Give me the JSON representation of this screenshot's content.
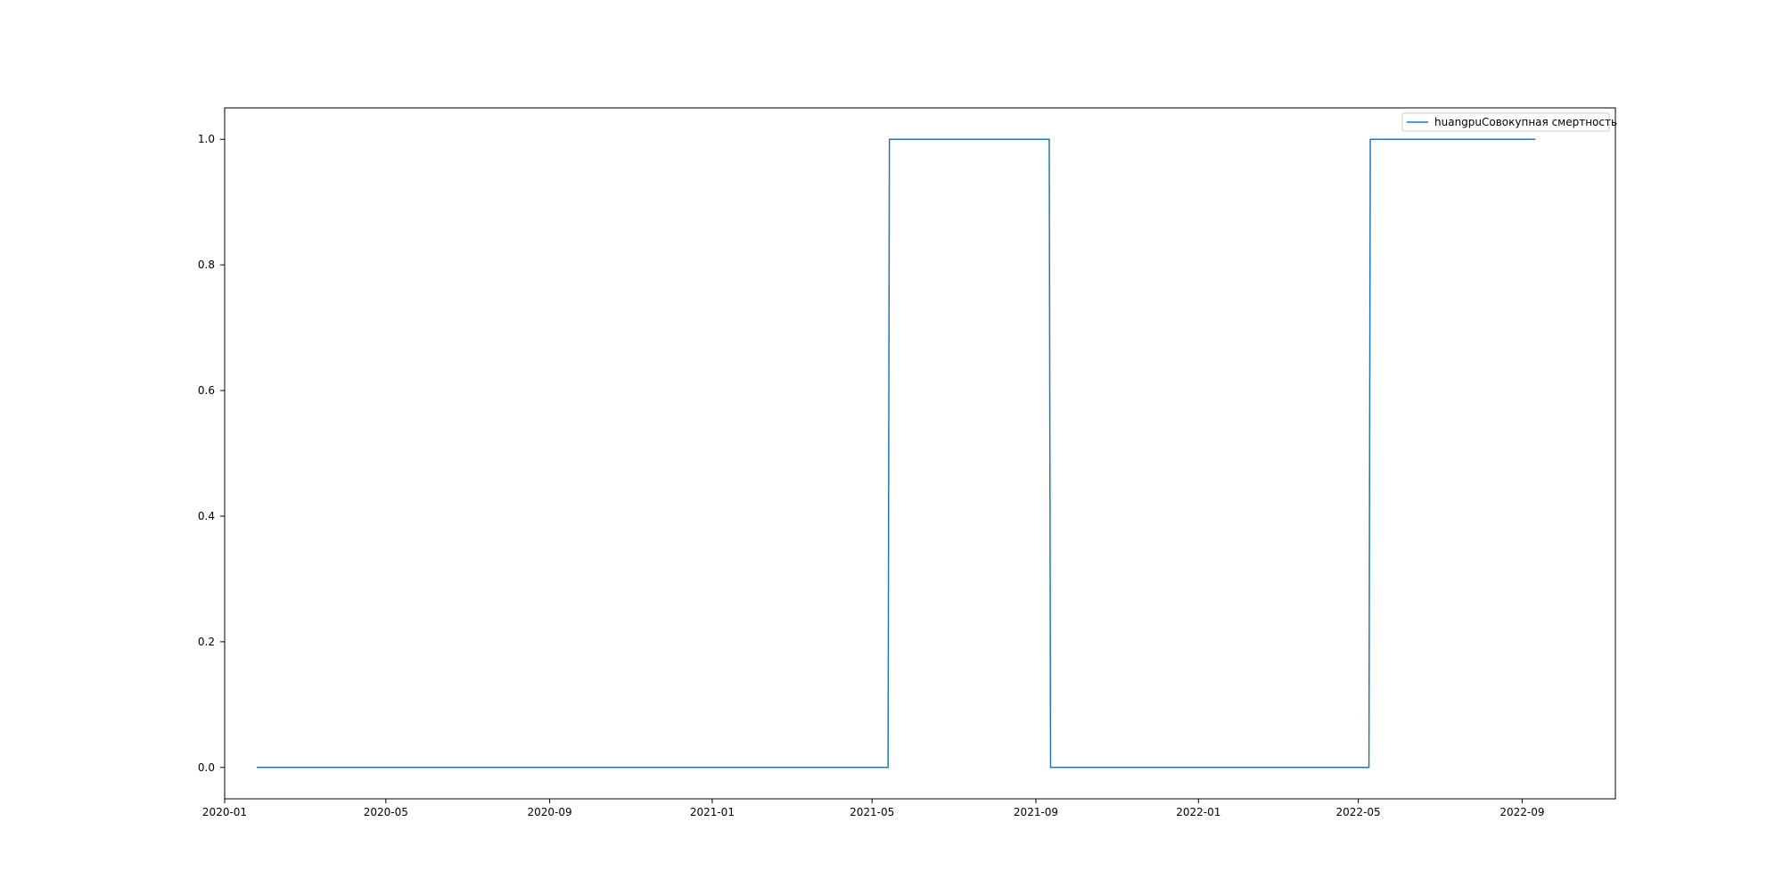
{
  "chart_data": {
    "type": "line",
    "title": "",
    "xlabel": "",
    "ylabel": "",
    "x_axis_type": "date",
    "xlim": [
      "2020-01-01",
      "2022-11-10"
    ],
    "ylim": [
      -0.05,
      1.05
    ],
    "x_ticks": [
      {
        "date": "2020-01-01",
        "label": "2020-01"
      },
      {
        "date": "2020-05-01",
        "label": "2020-05"
      },
      {
        "date": "2020-09-01",
        "label": "2020-09"
      },
      {
        "date": "2021-01-01",
        "label": "2021-01"
      },
      {
        "date": "2021-05-01",
        "label": "2021-05"
      },
      {
        "date": "2021-09-01",
        "label": "2021-09"
      },
      {
        "date": "2022-01-01",
        "label": "2022-01"
      },
      {
        "date": "2022-05-01",
        "label": "2022-05"
      },
      {
        "date": "2022-09-01",
        "label": "2022-09"
      }
    ],
    "y_ticks": [
      {
        "value": 0.0,
        "label": "0.0"
      },
      {
        "value": 0.2,
        "label": "0.2"
      },
      {
        "value": 0.4,
        "label": "0.4"
      },
      {
        "value": 0.6,
        "label": "0.6"
      },
      {
        "value": 0.8,
        "label": "0.8"
      },
      {
        "value": 1.0,
        "label": "1.0"
      }
    ],
    "grid": false,
    "legend_position": "upper right",
    "series": [
      {
        "name": "huangpuСовокупная смертность",
        "color": "#1f77b4",
        "x": [
          "2020-01-25",
          "2021-05-13",
          "2021-05-14",
          "2021-09-11",
          "2021-09-12",
          "2022-05-09",
          "2022-05-10",
          "2022-09-11"
        ],
        "y": [
          0,
          0,
          1,
          1,
          0,
          0,
          1,
          1
        ]
      }
    ]
  }
}
